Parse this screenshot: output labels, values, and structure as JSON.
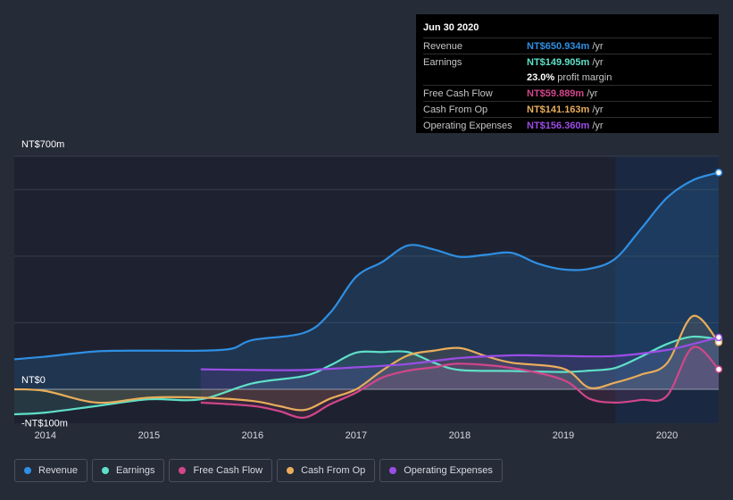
{
  "tooltip": {
    "date": "Jun 30 2020",
    "rows": [
      {
        "label": "Revenue",
        "value": "NT$650.934m",
        "unit": "/yr",
        "color": "#2f8fe3"
      },
      {
        "label": "Earnings",
        "value": "NT$149.905m",
        "unit": "/yr",
        "color": "#5fe0c8"
      },
      {
        "label": "",
        "value": "23.0%",
        "unit": "profit margin",
        "color": "#ffffff"
      },
      {
        "label": "Free Cash Flow",
        "value": "NT$59.889m",
        "unit": "/yr",
        "color": "#d1468a"
      },
      {
        "label": "Cash From Op",
        "value": "NT$141.163m",
        "unit": "/yr",
        "color": "#e9ad5b"
      },
      {
        "label": "Operating Expenses",
        "value": "NT$156.360m",
        "unit": "/yr",
        "color": "#9b4de6"
      }
    ]
  },
  "legend": [
    {
      "label": "Revenue",
      "color": "#2f8fe3"
    },
    {
      "label": "Earnings",
      "color": "#5fe0c8"
    },
    {
      "label": "Free Cash Flow",
      "color": "#d1468a"
    },
    {
      "label": "Cash From Op",
      "color": "#e9ad5b"
    },
    {
      "label": "Operating Expenses",
      "color": "#9b4de6"
    }
  ],
  "chart_data": {
    "type": "line",
    "title": "",
    "xlabel": "",
    "ylabel": "",
    "ylim": [
      -100,
      700
    ],
    "xlim": [
      2013.7,
      2020.5
    ],
    "y_tick_labels": [
      "NT$700m",
      "NT$0",
      "-NT$100m"
    ],
    "y_ticks": [
      700,
      0,
      -100
    ],
    "x_tick_labels": [
      "2014",
      "2015",
      "2016",
      "2017",
      "2018",
      "2019",
      "2020"
    ],
    "x_ticks": [
      2014,
      2015,
      2016,
      2017,
      2018,
      2019,
      2020
    ],
    "highlight_start": 2019.5,
    "series": [
      {
        "name": "Revenue",
        "color": "#2f8fe3",
        "x": [
          2013.7,
          2014.0,
          2014.5,
          2015.0,
          2015.5,
          2015.8,
          2016.0,
          2016.5,
          2016.75,
          2017.0,
          2017.25,
          2017.5,
          2017.75,
          2018.0,
          2018.25,
          2018.5,
          2018.75,
          2019.0,
          2019.25,
          2019.5,
          2019.75,
          2020.0,
          2020.25,
          2020.5
        ],
        "y": [
          90,
          98,
          114,
          116,
          116,
          122,
          148,
          170,
          230,
          338,
          382,
          432,
          420,
          398,
          404,
          410,
          378,
          360,
          362,
          392,
          482,
          575,
          628,
          651
        ]
      },
      {
        "name": "Earnings",
        "color": "#5fe0c8",
        "x": [
          2013.7,
          2014.0,
          2014.5,
          2015.0,
          2015.5,
          2016.0,
          2016.5,
          2016.75,
          2017.0,
          2017.25,
          2017.5,
          2017.75,
          2018.0,
          2018.5,
          2019.0,
          2019.25,
          2019.5,
          2019.75,
          2020.0,
          2020.25,
          2020.5
        ],
        "y": [
          -75,
          -70,
          -50,
          -30,
          -30,
          18,
          40,
          72,
          110,
          112,
          112,
          80,
          58,
          55,
          52,
          56,
          64,
          98,
          136,
          158,
          150
        ]
      },
      {
        "name": "Free Cash Flow",
        "color": "#d1468a",
        "x": [
          2015.5,
          2016.0,
          2016.25,
          2016.5,
          2016.75,
          2017.0,
          2017.25,
          2017.5,
          2017.75,
          2018.0,
          2018.5,
          2019.0,
          2019.25,
          2019.5,
          2019.75,
          2020.0,
          2020.25,
          2020.5
        ],
        "y": [
          -40,
          -50,
          -65,
          -85,
          -45,
          -10,
          35,
          56,
          66,
          77,
          64,
          28,
          -28,
          -40,
          -32,
          -20,
          126,
          60
        ]
      },
      {
        "name": "Cash From Op",
        "color": "#e9ad5b",
        "x": [
          2013.7,
          2014.0,
          2014.5,
          2015.0,
          2015.5,
          2016.0,
          2016.25,
          2016.5,
          2016.75,
          2017.0,
          2017.25,
          2017.5,
          2017.75,
          2018.0,
          2018.25,
          2018.5,
          2019.0,
          2019.25,
          2019.5,
          2019.75,
          2020.0,
          2020.25,
          2020.5
        ],
        "y": [
          0,
          -5,
          -40,
          -25,
          -25,
          -35,
          -50,
          -62,
          -28,
          0,
          56,
          102,
          116,
          124,
          100,
          80,
          62,
          5,
          20,
          44,
          78,
          220,
          141
        ]
      },
      {
        "name": "Operating Expenses",
        "color": "#9b4de6",
        "x": [
          2015.5,
          2016.0,
          2016.5,
          2017.0,
          2017.5,
          2018.0,
          2018.5,
          2019.0,
          2019.5,
          2020.0,
          2020.25,
          2020.5
        ],
        "y": [
          60,
          58,
          58,
          66,
          76,
          94,
          102,
          100,
          100,
          118,
          136,
          156
        ]
      }
    ]
  }
}
